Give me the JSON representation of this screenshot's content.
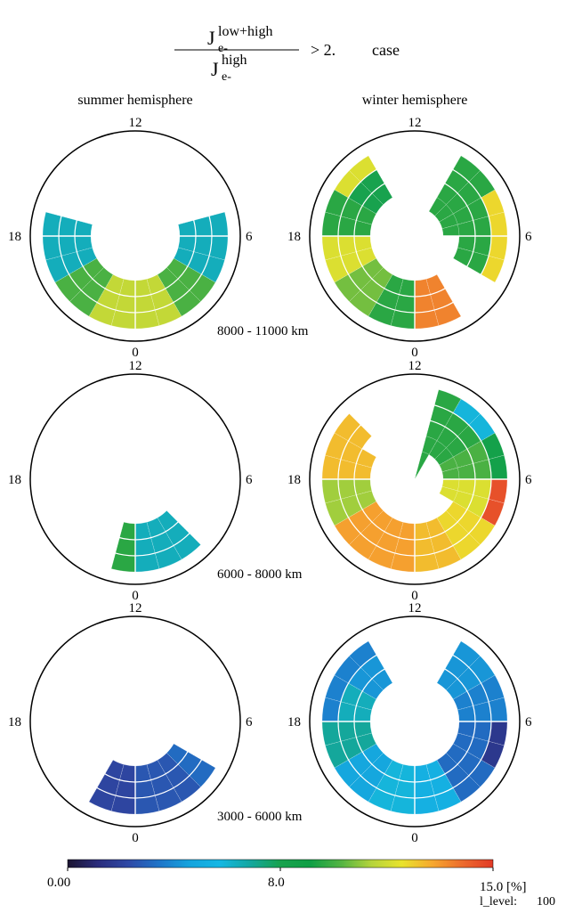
{
  "header": {
    "ratio_symbol": "J",
    "numerator_sub": "e-",
    "numerator_sup": "low+high",
    "denominator_sub": "e-",
    "denominator_sup": "high",
    "condition": "> 2.",
    "case_label": "case"
  },
  "columns": [
    "summer hemisphere",
    "winter hemisphere"
  ],
  "mlt_labels": {
    "top": "12",
    "bottom": "0",
    "left": "18",
    "right": "6"
  },
  "colorbar": {
    "min_label": "0.00",
    "mid_label": "8.0",
    "max_label": "15.0 [%]",
    "level_label": "l_level:",
    "level_value": "100",
    "stops": [
      "#1b1430",
      "#2a2c7c",
      "#2f49a6",
      "#1f74c8",
      "#15a3dd",
      "#15b7e4",
      "#14a7a0",
      "#18a24e",
      "#0f9f45",
      "#53b443",
      "#b5d43b",
      "#e9e32d",
      "#f6a82f",
      "#ec6b2e",
      "#e23a27"
    ]
  },
  "chart_data": [
    {
      "type": "polar-sector",
      "hemisphere": "summer hemisphere",
      "altitude_band": "8000 - 11000 km",
      "value_range": [
        0,
        15
      ],
      "sectors": [
        {
          "mlt": [
            0,
            2
          ],
          "values": [
            11,
            11,
            11
          ]
        },
        {
          "mlt": [
            22,
            24
          ],
          "values": [
            11,
            11,
            11
          ]
        },
        {
          "mlt": [
            2,
            4
          ],
          "values": [
            9.5,
            9.5,
            9.5
          ]
        },
        {
          "mlt": [
            20,
            22
          ],
          "values": [
            9.5,
            9.5,
            9.5
          ]
        },
        {
          "mlt": [
            4,
            6
          ],
          "values": [
            6,
            6,
            6
          ]
        },
        {
          "mlt": [
            6,
            7
          ],
          "values": [
            6,
            6,
            6
          ]
        },
        {
          "mlt": [
            17,
            18
          ],
          "values": [
            6,
            6,
            6
          ]
        },
        {
          "mlt": [
            18,
            20
          ],
          "values": [
            6,
            6,
            6
          ]
        }
      ]
    },
    {
      "type": "polar-sector",
      "hemisphere": "winter hemisphere",
      "altitude_band": "",
      "value_range": [
        0,
        15
      ],
      "sectors": [
        {
          "mlt": [
            22,
            24
          ],
          "values": [
            13.5,
            13.5,
            13.5
          ]
        },
        {
          "mlt": [
            0,
            2
          ],
          "values": [
            9,
            9,
            9
          ]
        },
        {
          "mlt": [
            2,
            4
          ],
          "values": [
            10,
            10,
            10
          ]
        },
        {
          "mlt": [
            4,
            6
          ],
          "values": [
            11.5,
            11.5,
            11.5
          ]
        },
        {
          "mlt": [
            6,
            8
          ],
          "values": [
            9,
            9,
            9
          ]
        },
        {
          "mlt": [
            8,
            10
          ],
          "values": [
            11.5,
            7.5,
            7.5
          ]
        },
        {
          "mlt": [
            14,
            16
          ],
          "values": [
            9,
            9,
            9,
            9
          ]
        },
        {
          "mlt": [
            16,
            18
          ],
          "values": [
            12,
            9,
            9,
            9
          ]
        },
        {
          "mlt": [
            18,
            20
          ],
          "values": [
            12,
            9,
            9
          ]
        }
      ]
    },
    {
      "type": "polar-sector",
      "hemisphere": "summer hemisphere",
      "altitude_band": "6000 - 8000 km",
      "value_range": [
        0,
        15
      ],
      "sectors": [
        {
          "mlt": [
            0,
            1
          ],
          "values": [
            9,
            9,
            9
          ]
        },
        {
          "mlt": [
            21,
            24
          ],
          "values": [
            6,
            6,
            6
          ]
        }
      ]
    },
    {
      "type": "polar-sector",
      "hemisphere": "winter hemisphere",
      "altitude_band": "",
      "value_range": [
        0,
        15
      ],
      "sectors": [
        {
          "mlt": [
            0,
            2
          ],
          "values": [
            13,
            13,
            13
          ]
        },
        {
          "mlt": [
            2,
            4
          ],
          "values": [
            13,
            13,
            13
          ]
        },
        {
          "mlt": [
            22,
            24
          ],
          "values": [
            12.5,
            12.5,
            12.5
          ]
        },
        {
          "mlt": [
            20,
            22
          ],
          "values": [
            12,
            12,
            12
          ]
        },
        {
          "mlt": [
            18,
            20
          ],
          "values": [
            14.5,
            11.5,
            11.5,
            11.5
          ]
        },
        {
          "mlt": [
            16,
            18
          ],
          "values": [
            8,
            9.5,
            9.5,
            9.5
          ]
        },
        {
          "mlt": [
            14,
            16
          ],
          "values": [
            5.5,
            9,
            9,
            9
          ]
        },
        {
          "mlt": [
            13,
            14
          ],
          "values": [
            9,
            9,
            9,
            9,
            9
          ]
        },
        {
          "mlt": [
            4,
            6
          ],
          "values": [
            10.5,
            10.5,
            10.5
          ]
        },
        {
          "mlt": [
            6,
            8
          ],
          "values": [
            12.5,
            12.5,
            12.5
          ]
        },
        {
          "mlt": [
            8,
            9
          ],
          "values": [
            12.5,
            12.5
          ]
        }
      ]
    },
    {
      "type": "polar-sector",
      "hemisphere": "summer hemisphere",
      "altitude_band": "3000 - 6000 km",
      "value_range": [
        0,
        15
      ],
      "sectors": [
        {
          "mlt": [
            20,
            21
          ],
          "values": [
            3,
            3,
            3
          ]
        },
        {
          "mlt": [
            21,
            24
          ],
          "values": [
            2.5,
            2.5,
            2.5
          ]
        },
        {
          "mlt": [
            0,
            2
          ],
          "values": [
            2,
            2,
            2
          ]
        }
      ]
    },
    {
      "type": "polar-sector",
      "hemisphere": "winter hemisphere",
      "altitude_band": "",
      "value_range": [
        0,
        15
      ],
      "sectors": [
        {
          "mlt": [
            20,
            22
          ],
          "values": [
            3,
            3,
            3
          ]
        },
        {
          "mlt": [
            18,
            20
          ],
          "values": [
            1.5,
            3,
            3
          ]
        },
        {
          "mlt": [
            16,
            18
          ],
          "values": [
            3.5,
            3.5,
            3.5
          ]
        },
        {
          "mlt": [
            14,
            16
          ],
          "values": [
            4,
            4,
            4
          ]
        },
        {
          "mlt": [
            22,
            24
          ],
          "values": [
            5,
            5,
            5
          ]
        },
        {
          "mlt": [
            0,
            2
          ],
          "values": [
            5.5,
            5.5,
            5.5
          ]
        },
        {
          "mlt": [
            2,
            4
          ],
          "values": [
            4.5,
            4.5,
            4.5
          ]
        },
        {
          "mlt": [
            4,
            6
          ],
          "values": [
            6.5,
            6.5,
            6.5
          ]
        },
        {
          "mlt": [
            6,
            8
          ],
          "values": [
            3.5,
            6,
            6
          ]
        },
        {
          "mlt": [
            8,
            10
          ],
          "values": [
            3.5,
            4,
            4
          ]
        }
      ]
    }
  ]
}
